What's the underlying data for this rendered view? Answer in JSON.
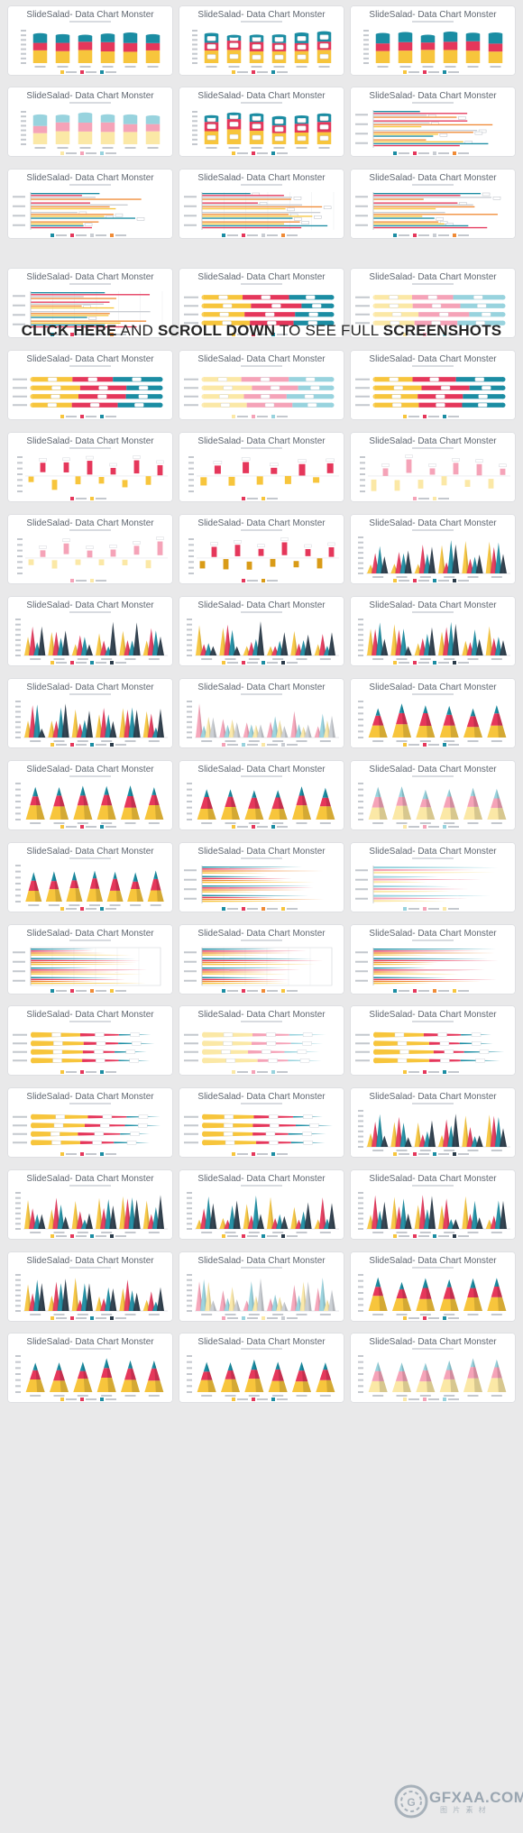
{
  "tile_title": "SlideSalad- Data Chart Monster",
  "banner": {
    "part1": "CLICK HERE",
    "part2": " AND ",
    "part3": "SCROLL DOWN",
    "part4": " TO SEE FULL ",
    "part5": "SCREENSHOTS"
  },
  "watermark": {
    "text": "GFXAA.COM",
    "sub": "图 片 素 材"
  },
  "colors": {
    "teal": "#1b8da3",
    "red": "#e5375b",
    "yellow": "#f7c53c",
    "orange": "#f08b36",
    "pink": "#f5a3b8",
    "lightteal": "#98d3de",
    "cream": "#fbe8a6",
    "gray": "#c9cdd3",
    "dark": "#2a3b4a",
    "gold": "#d99b17"
  },
  "tiles": [
    {
      "chart": "stacked-column"
    },
    {
      "chart": "stacked-column-labels"
    },
    {
      "chart": "stacked-column"
    },
    {
      "chart": "stacked-column-light"
    },
    {
      "chart": "stacked-column-labels"
    },
    {
      "chart": "clustered-bar"
    },
    {
      "chart": "clustered-bar"
    },
    {
      "chart": "clustered-bar-grid"
    },
    {
      "chart": "clustered-bar"
    },
    {
      "chart": "clustered-bar-grid"
    },
    {
      "chart": "stacked-bar-rounded"
    },
    {
      "chart": "stacked-bar-rounded-light"
    },
    {
      "chart": "stacked-bar-rounded"
    },
    {
      "chart": "stacked-bar-rounded-light"
    },
    {
      "chart": "stacked-bar-rounded"
    },
    {
      "chart": "floating-columns"
    },
    {
      "chart": "floating-columns-sparse"
    },
    {
      "chart": "floating-columns-light"
    },
    {
      "chart": "floating-columns-light"
    },
    {
      "chart": "floating-columns-strong"
    },
    {
      "chart": "cone-clustered"
    },
    {
      "chart": "cone-clustered"
    },
    {
      "chart": "cone-clustered"
    },
    {
      "chart": "cone-clustered"
    },
    {
      "chart": "cone-clustered"
    },
    {
      "chart": "cone-clustered-light"
    },
    {
      "chart": "cone-stacked"
    },
    {
      "chart": "cone-stacked"
    },
    {
      "chart": "cone-stacked"
    },
    {
      "chart": "cone-stacked-light"
    },
    {
      "chart": "cone-stacked-small"
    },
    {
      "chart": "cone-bar"
    },
    {
      "chart": "cone-bar-light"
    },
    {
      "chart": "cone-bar-grid"
    },
    {
      "chart": "cone-bar-grid"
    },
    {
      "chart": "cone-bar"
    },
    {
      "chart": "stacked-cone-bar"
    },
    {
      "chart": "stacked-cone-bar-light"
    },
    {
      "chart": "stacked-cone-bar"
    },
    {
      "chart": "stacked-cone-bar"
    },
    {
      "chart": "stacked-cone-bar"
    },
    {
      "chart": "cone-clustered"
    },
    {
      "chart": "cone-clustered"
    },
    {
      "chart": "cone-clustered"
    },
    {
      "chart": "cone-clustered"
    },
    {
      "chart": "cone-clustered"
    },
    {
      "chart": "cone-clustered-light"
    },
    {
      "chart": "cone-stacked"
    },
    {
      "chart": "cone-stacked"
    },
    {
      "chart": "cone-stacked"
    },
    {
      "chart": "cone-stacked-light"
    }
  ]
}
